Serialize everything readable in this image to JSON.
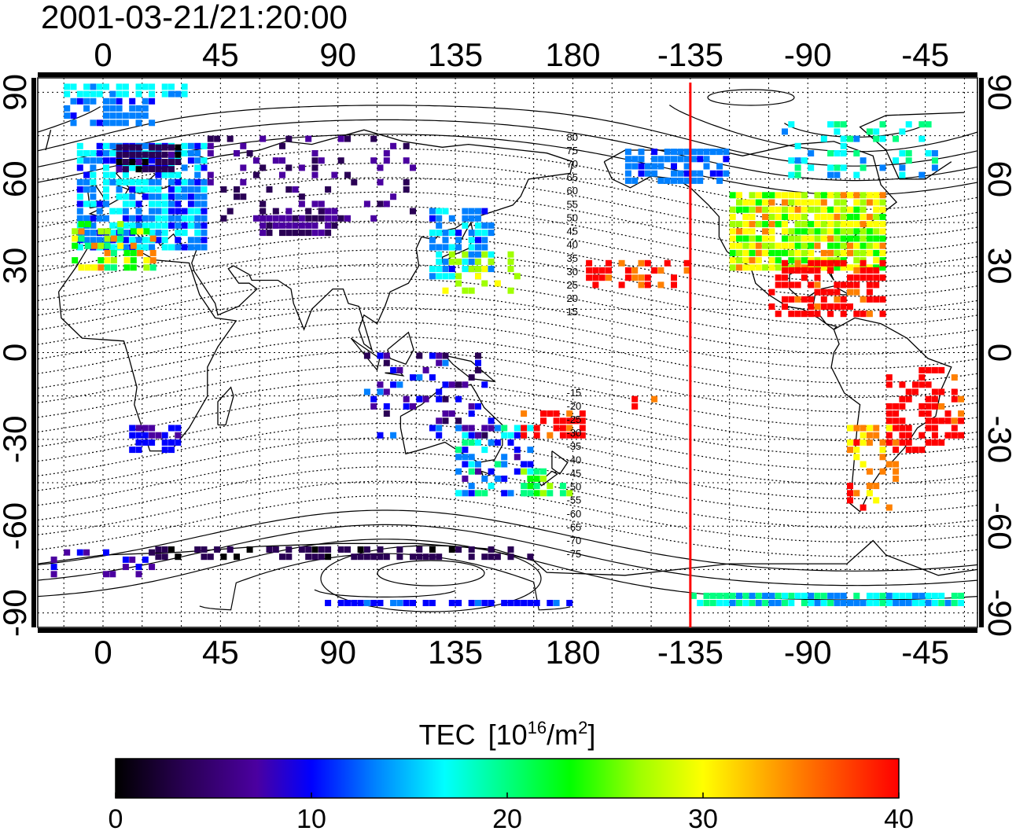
{
  "timestamp": "2001-03-21/21:20:00",
  "map": {
    "lon_ticks_top": [
      "0",
      "45",
      "90",
      "135",
      "180",
      "-135",
      "-90",
      "-45"
    ],
    "lon_ticks_bottom": [
      "0",
      "45",
      "90",
      "135",
      "180",
      "-135",
      "-90",
      "-45"
    ],
    "lat_ticks_left": [
      "90",
      "60",
      "30",
      "0",
      "-30",
      "-60",
      "-90"
    ],
    "lat_ticks_right": [
      "90",
      "60",
      "30",
      "0",
      "-30",
      "-60",
      "-90"
    ],
    "lon_range": [
      -25,
      335
    ],
    "lat_range": [
      -95,
      95
    ],
    "meridian_marker_lon": -135,
    "meridian_marker_color": "#ff0000",
    "contour_labels": [
      "80",
      "75",
      "70",
      "65",
      "60",
      "55",
      "50",
      "45",
      "40",
      "35",
      "30",
      "25",
      "20",
      "15",
      "-15",
      "-20",
      "-25",
      "-30",
      "-35",
      "-40",
      "-45",
      "-50",
      "-55",
      "-60",
      "-65",
      "-70",
      "-75"
    ]
  },
  "colorbar": {
    "title": "TEC",
    "unit_prefix": "[10",
    "unit_exp": "16",
    "unit_mid": "/m",
    "unit_exp2": "2",
    "unit_suffix": "]",
    "min": 0,
    "max": 40,
    "tick_labels": [
      "0",
      "10",
      "20",
      "30",
      "40"
    ],
    "colors": [
      "#000000",
      "#2a0055",
      "#4b00a0",
      "#0000ff",
      "#0080ff",
      "#00ffff",
      "#00ff80",
      "#00ff00",
      "#a0ff00",
      "#ffff00",
      "#ff8000",
      "#ff0000"
    ]
  }
}
